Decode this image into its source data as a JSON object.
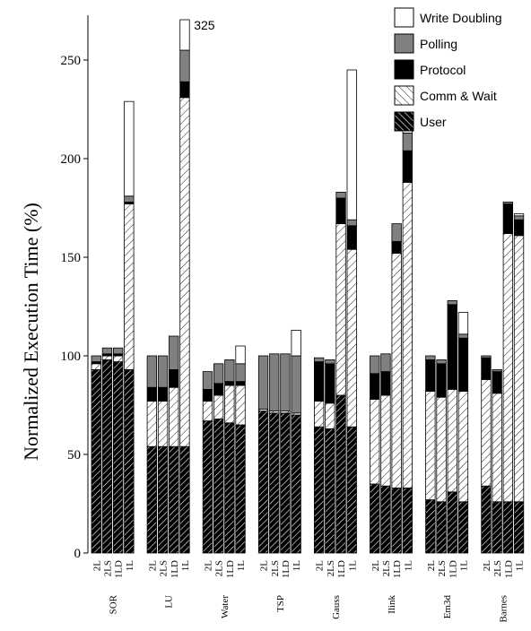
{
  "chart_data": {
    "type": "bar",
    "stacked": true,
    "title": "",
    "xlabel": "",
    "ylabel": "Normalized Execution Time (%)",
    "ylim": [
      0,
      270
    ],
    "yticks": [
      0,
      50,
      100,
      150,
      200,
      250
    ],
    "grid": false,
    "legend_position": "top-right",
    "configs": [
      "2L",
      "2LS",
      "1LD",
      "1L"
    ],
    "groups": [
      "SOR",
      "LU",
      "Water",
      "TSP",
      "Gauss",
      "Ilink",
      "Em3d",
      "Barnes"
    ],
    "series": [
      {
        "name": "User",
        "pattern": "dense-hatch-dark",
        "values": [
          [
            93,
            98,
            97,
            93
          ],
          [
            54,
            54,
            54,
            54
          ],
          [
            67,
            68,
            66,
            65
          ],
          [
            72,
            71,
            71,
            70
          ],
          [
            64,
            63,
            80,
            64
          ],
          [
            35,
            34,
            33,
            33
          ],
          [
            27,
            26,
            31,
            26
          ],
          [
            34,
            26,
            26,
            26
          ]
        ]
      },
      {
        "name": "Comm & Wait",
        "pattern": "sparse-hatch",
        "values": [
          [
            3,
            2,
            3,
            84
          ],
          [
            23,
            23,
            30,
            177
          ],
          [
            10,
            12,
            19,
            20
          ],
          [
            1,
            1,
            1,
            1
          ],
          [
            13,
            13,
            87,
            90
          ],
          [
            43,
            46,
            119,
            155
          ],
          [
            55,
            53,
            52,
            56
          ],
          [
            54,
            55,
            136,
            135
          ]
        ]
      },
      {
        "name": "Protocol",
        "values": [
          [
            1,
            1,
            1,
            1
          ],
          [
            7,
            7,
            9,
            8
          ],
          [
            6,
            6,
            2,
            2
          ],
          [
            0,
            0,
            0,
            0
          ],
          [
            20,
            20,
            13,
            12
          ],
          [
            13,
            12,
            6,
            16
          ],
          [
            16,
            17,
            43,
            27
          ],
          [
            11,
            11,
            15,
            8
          ]
        ]
      },
      {
        "name": "Polling",
        "values": [
          [
            3,
            3,
            3,
            3
          ],
          [
            16,
            16,
            17,
            16
          ],
          [
            9,
            10,
            11,
            9
          ],
          [
            27,
            29,
            29,
            29
          ],
          [
            2,
            2,
            3,
            3
          ],
          [
            9,
            9,
            9,
            9
          ],
          [
            2,
            2,
            2,
            2
          ],
          [
            1,
            1,
            1,
            2
          ]
        ]
      },
      {
        "name": "Write Doubling",
        "values": [
          [
            0,
            0,
            0,
            48
          ],
          [
            0,
            0,
            0,
            70
          ],
          [
            0,
            0,
            0,
            9
          ],
          [
            0,
            0,
            0,
            13
          ],
          [
            0,
            0,
            0,
            76
          ],
          [
            0,
            0,
            0,
            4
          ],
          [
            0,
            0,
            0,
            11
          ],
          [
            0,
            0,
            0,
            1
          ]
        ]
      }
    ],
    "annotations": [
      {
        "text": "325",
        "group": "LU",
        "config": "1L"
      }
    ],
    "colors": {
      "User": "#000000",
      "Comm & Wait": "#ffffff",
      "Protocol": "#000000",
      "Polling": "#808080",
      "Write Doubling": "#ffffff"
    }
  }
}
